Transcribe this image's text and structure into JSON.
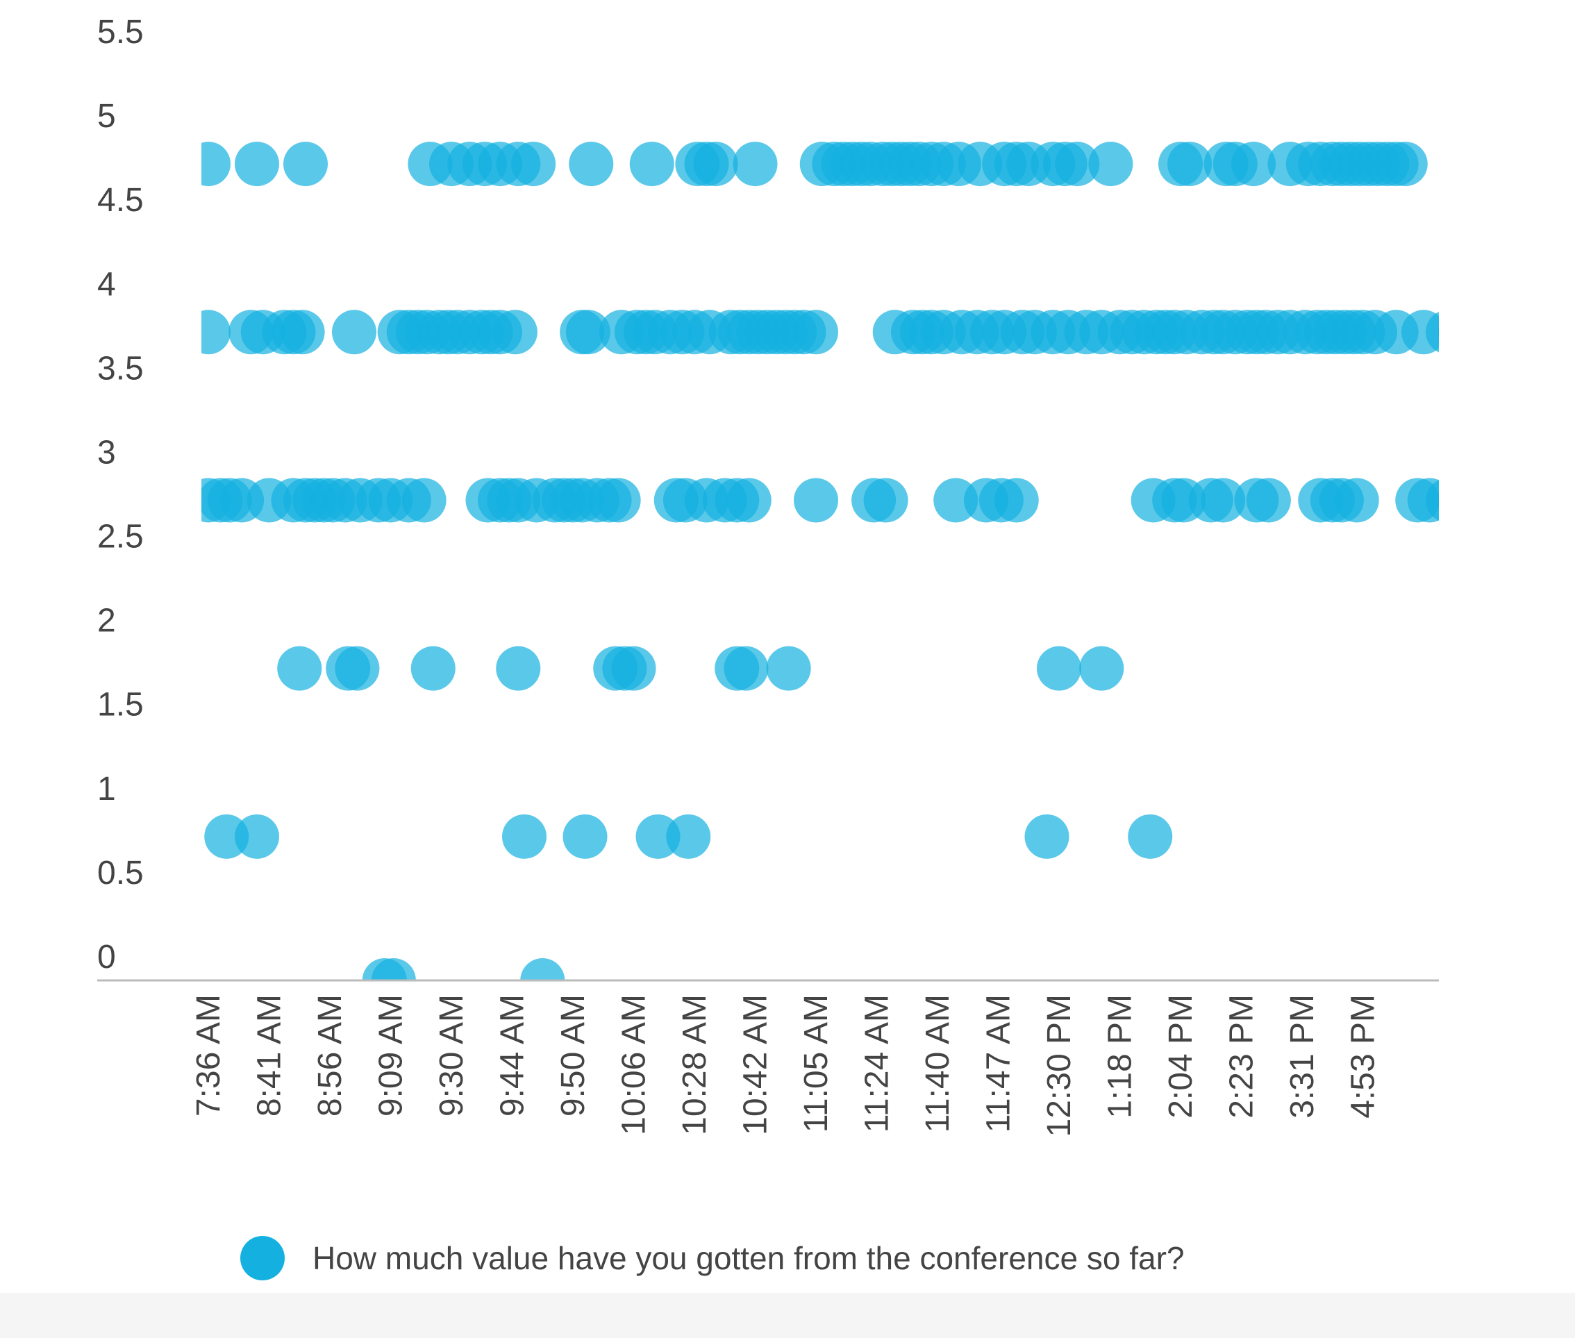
{
  "chart_data": {
    "type": "scatter",
    "colors": {
      "point": "#14b1e0",
      "axis": "#bbbbbb",
      "text": "#444444"
    },
    "ylim": [
      0,
      5.5
    ],
    "yticks": [
      "5.5",
      "5",
      "4.5",
      "4",
      "3.5",
      "3",
      "2.5",
      "2",
      "1.5",
      "1",
      "0.5",
      "0"
    ],
    "categories": [
      "7:36 AM",
      "8:41 AM",
      "8:56 AM",
      "9:09 AM",
      "9:30 AM",
      "9:44 AM",
      "9:50 AM",
      "10:06 AM",
      "10:28 AM",
      "10:42 AM",
      "11:05 AM",
      "11:24 AM",
      "11:40 AM",
      "11:47 AM",
      "12:30 PM",
      "1:18 PM",
      "2:04 PM",
      "2:23 PM",
      "3:31 PM",
      "4:53 PM"
    ],
    "grid": false,
    "legend_position": "bottom",
    "series": [
      {
        "name": "How much value have you gotten from the conference so far?",
        "y_levels": [
          {
            "y": 5,
            "x": [
              0.0,
              0.8,
              1.6,
              3.65,
              4.0,
              4.3,
              4.55,
              4.8,
              5.1,
              5.35,
              6.3,
              7.3,
              8.05,
              8.2,
              8.35,
              9.0,
              10.1,
              10.3,
              10.45,
              10.6,
              10.75,
              10.9,
              11.1,
              11.25,
              11.4,
              11.55,
              11.7,
              11.9,
              12.1,
              12.35,
              12.7,
              13.1,
              13.3,
              13.5,
              13.9,
              14.1,
              14.3,
              14.85,
              16.0,
              16.15,
              16.75,
              16.9,
              17.2,
              17.8,
              18.1,
              18.3,
              18.5,
              18.65,
              18.8,
              18.95,
              19.1,
              19.25,
              19.4,
              19.55,
              19.7
            ]
          },
          {
            "y": 4,
            "x": [
              0.0,
              0.7,
              0.9,
              1.25,
              1.4,
              1.55,
              2.4,
              3.15,
              3.3,
              3.45,
              3.6,
              3.8,
              3.95,
              4.1,
              4.3,
              4.5,
              4.65,
              4.8,
              5.05,
              6.15,
              6.25,
              6.8,
              7.05,
              7.2,
              7.35,
              7.6,
              7.8,
              8.0,
              8.25,
              8.6,
              8.75,
              8.9,
              9.05,
              9.2,
              9.35,
              9.5,
              9.65,
              9.8,
              10.0,
              11.3,
              11.6,
              11.75,
              11.9,
              12.1,
              12.4,
              12.65,
              12.9,
              13.1,
              13.4,
              13.6,
              13.9,
              14.15,
              14.45,
              14.7,
              15.0,
              15.2,
              15.4,
              15.6,
              15.75,
              15.9,
              16.1,
              16.35,
              16.55,
              16.7,
              16.9,
              17.1,
              17.25,
              17.4,
              17.6,
              17.8,
              18.05,
              18.25,
              18.4,
              18.55,
              18.7,
              18.85,
              19.0,
              19.2,
              19.55,
              20.0,
              20.4,
              20.6
            ]
          },
          {
            "y": 3,
            "x": [
              0.0,
              0.2,
              0.35,
              0.55,
              1.0,
              1.4,
              1.6,
              1.75,
              1.9,
              2.05,
              2.25,
              2.5,
              2.8,
              3.0,
              3.3,
              3.55,
              4.6,
              4.8,
              4.95,
              5.1,
              5.4,
              5.7,
              5.85,
              6.0,
              6.15,
              6.4,
              6.6,
              6.75,
              7.7,
              7.85,
              8.2,
              8.5,
              8.7,
              8.9,
              10.0,
              10.95,
              11.15,
              12.3,
              12.8,
              13.05,
              13.3,
              15.55,
              15.9,
              16.05,
              16.5,
              16.7,
              17.25,
              17.45,
              18.3,
              18.5,
              18.65,
              18.9,
              19.9,
              20.1,
              20.4
            ]
          },
          {
            "y": 2,
            "x": [
              1.5,
              2.3,
              2.45,
              3.7,
              5.1,
              6.7,
              6.85,
              7.0,
              8.7,
              8.85,
              9.55,
              14.0,
              14.7
            ]
          },
          {
            "y": 1,
            "x": [
              0.3,
              0.8,
              5.2,
              6.2,
              7.4,
              7.9,
              13.8,
              15.5
            ]
          },
          {
            "y": 0,
            "x": [
              2.9,
              3.05,
              5.5
            ]
          }
        ]
      }
    ]
  }
}
